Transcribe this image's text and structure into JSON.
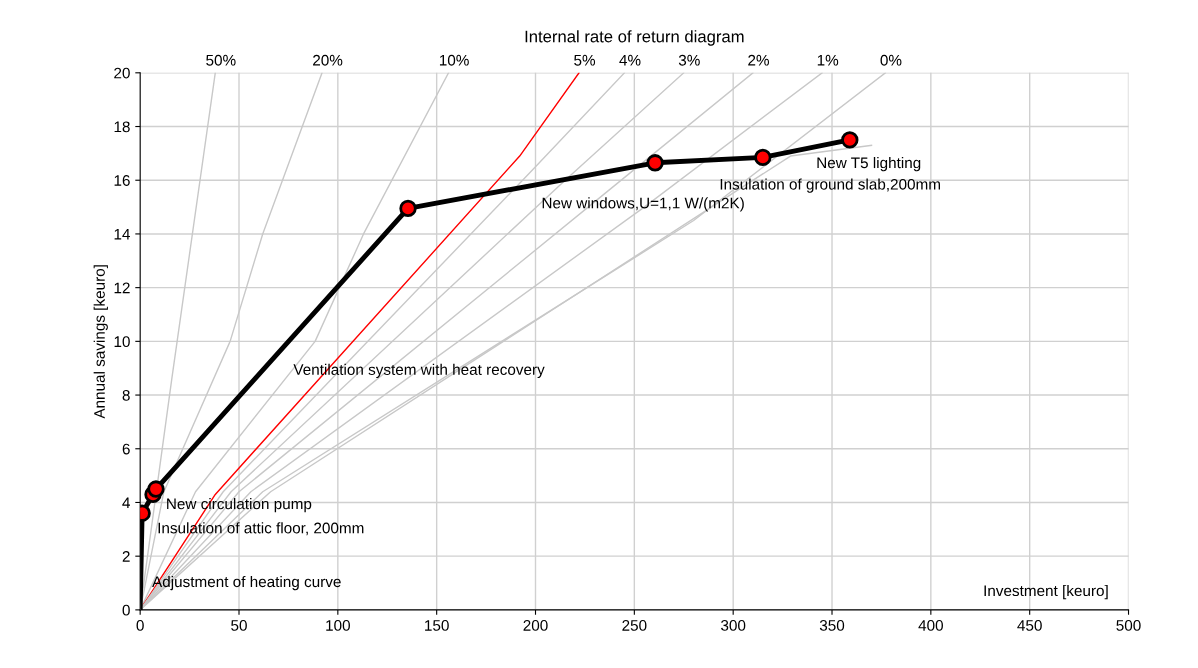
{
  "chart_data": {
    "type": "line",
    "title": "Internal rate of return diagram",
    "xlabel": "Investment [keuro]",
    "ylabel": "Annual savings [keuro]",
    "xlim": [
      0,
      500
    ],
    "ylim": [
      0,
      20
    ],
    "xticks": [
      0,
      50,
      100,
      150,
      200,
      250,
      300,
      350,
      400,
      450,
      500
    ],
    "yticks": [
      0,
      2,
      4,
      6,
      8,
      10,
      12,
      14,
      16,
      18,
      20
    ],
    "grid": true,
    "marker": "none",
    "line_style": "solid",
    "series": [
      {
        "name": "50%",
        "color": "#c8c8c8",
        "x": [
          0,
          16,
          38
        ],
        "values": [
          0,
          8.6,
          20
        ]
      },
      {
        "name": "20%",
        "color": "#c8c8c8",
        "x": [
          0,
          12,
          45.5,
          62,
          92
        ],
        "values": [
          0,
          4.4,
          10,
          14,
          20
        ]
      },
      {
        "name": "10%",
        "color": "#c8c8c8",
        "x": [
          0,
          28,
          88.5,
          113,
          156
        ],
        "values": [
          0,
          4.4,
          10,
          14,
          20
        ]
      },
      {
        "name": "5%",
        "color": "#ff0000",
        "x": [
          0,
          38,
          192,
          222
        ],
        "values": [
          0,
          4.3,
          16.9,
          20
        ]
      },
      {
        "name": "4%",
        "color": "#c8c8c8",
        "x": [
          0,
          42,
          200,
          245
        ],
        "values": [
          0,
          4.4,
          16.5,
          20
        ]
      },
      {
        "name": "3%",
        "color": "#c8c8c8",
        "x": [
          0,
          46,
          215,
          275
        ],
        "values": [
          0,
          4.4,
          16,
          20
        ]
      },
      {
        "name": "2%",
        "color": "#c8c8c8",
        "x": [
          0,
          50,
          235,
          310
        ],
        "values": [
          0,
          4.4,
          15.5,
          20
        ]
      },
      {
        "name": "1%",
        "color": "#c8c8c8",
        "x": [
          0,
          56,
          255,
          345
        ],
        "values": [
          0,
          4.4,
          15,
          20
        ]
      },
      {
        "name": "0%",
        "color": "#c8c8c8",
        "x": [
          0,
          62,
          280,
          377
        ],
        "values": [
          0,
          4.4,
          14.5,
          20
        ]
      },
      {
        "color": "#c8c8c8",
        "x": [
          0,
          66,
          329,
          370
        ],
        "values": [
          0,
          4.4,
          16.9,
          17.3
        ]
      },
      {
        "color": "#000000",
        "x": [
          0,
          1,
          6.5,
          8,
          135.5,
          260.5,
          315,
          359
        ],
        "values": [
          0,
          3.6,
          4.3,
          4.5,
          14.95,
          16.65,
          16.85,
          17.5
        ]
      },
      {
        "type": "scatter",
        "color": "#ff0000",
        "marker": "circle",
        "x": [
          1,
          6.5,
          8,
          135.5,
          260.5,
          315,
          359
        ],
        "values": [
          3.6,
          4.3,
          4.5,
          14.95,
          16.65,
          16.85,
          17.5
        ]
      }
    ],
    "annotations": [
      "Adjustment of heating curve",
      "Insulation of attic floor, 200mm",
      "New circulation pump",
      "Ventilation system with heat recovery",
      "New windows,U=1,1 W/(m2K)",
      "Insulation of ground slab,200mm",
      "New T5 lighting"
    ]
  }
}
